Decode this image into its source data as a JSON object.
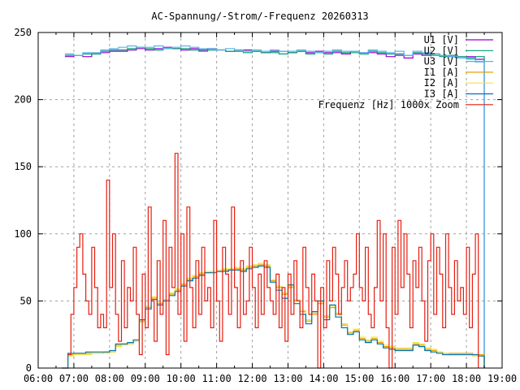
{
  "chart_data": {
    "type": "line",
    "title": "AC-Spannung/-Strom/-Frequenz 20260313",
    "xlabel": "",
    "ylabel": "",
    "xlim_hours": [
      6,
      19
    ],
    "ylim": [
      0,
      250
    ],
    "grid": true,
    "legend_position": "top-right",
    "x_tick_labels": [
      "06:00",
      "07:00",
      "08:00",
      "09:00",
      "10:00",
      "11:00",
      "12:00",
      "13:00",
      "14:00",
      "15:00",
      "16:00",
      "17:00",
      "18:00",
      "19:00"
    ],
    "y_tick_labels": [
      "0",
      "50",
      "100",
      "150",
      "200",
      "250"
    ],
    "series": [
      {
        "name": "U1 [V]",
        "color": "#9400d3",
        "start_hour": 6.75,
        "step_min": 15,
        "values": [
          232,
          233,
          232,
          234,
          235,
          236,
          236,
          237,
          238,
          237,
          238,
          239,
          238,
          237,
          238,
          237,
          238,
          237,
          236,
          237,
          237,
          236,
          235,
          236,
          236,
          235,
          236,
          235,
          236,
          235,
          235,
          234,
          236,
          235,
          235,
          234,
          232,
          233,
          231,
          234,
          233,
          234,
          233,
          232,
          231,
          232,
          230,
          0
        ]
      },
      {
        "name": "U2 [V]",
        "color": "#009e73",
        "start_hour": 6.75,
        "step_min": 15,
        "values": [
          233,
          233,
          234,
          234,
          236,
          237,
          237,
          238,
          239,
          238,
          237,
          238,
          238,
          238,
          237,
          236,
          237,
          237,
          236,
          236,
          235,
          236,
          235,
          235,
          234,
          235,
          236,
          234,
          235,
          234,
          236,
          235,
          235,
          234,
          236,
          235,
          234,
          234,
          233,
          235,
          234,
          233,
          232,
          233,
          232,
          231,
          232,
          0
        ]
      },
      {
        "name": "U3 [V]",
        "color": "#56b4e9",
        "start_hour": 6.75,
        "step_min": 15,
        "values": [
          234,
          233,
          235,
          235,
          237,
          238,
          239,
          240,
          239,
          239,
          240,
          238,
          239,
          240,
          239,
          238,
          238,
          237,
          238,
          237,
          236,
          237,
          236,
          237,
          236,
          236,
          237,
          236,
          235,
          236,
          237,
          236,
          236,
          235,
          237,
          236,
          235,
          236,
          233,
          236,
          235,
          234,
          233,
          232,
          231,
          230,
          228,
          0
        ]
      },
      {
        "name": "I1 [A]",
        "color": "#e69f00",
        "start_hour": 6.6667,
        "step_min": 10,
        "values": [
          0,
          10,
          11,
          11,
          11,
          11,
          11,
          12,
          12,
          17,
          18,
          18,
          20,
          35,
          45,
          52,
          48,
          50,
          55,
          58,
          62,
          66,
          68,
          70,
          71,
          72,
          72,
          73,
          73,
          74,
          73,
          75,
          76,
          77,
          76,
          65,
          60,
          55,
          60,
          50,
          42,
          35,
          40,
          48,
          38,
          45,
          40,
          32,
          26,
          28,
          22,
          20,
          22,
          19,
          16,
          15,
          14,
          14,
          14,
          18,
          17,
          14,
          13,
          12,
          11,
          11,
          11,
          11,
          11,
          10,
          10,
          0
        ]
      },
      {
        "name": "I2 [A]",
        "color": "#f0e442",
        "start_hour": 6.6667,
        "step_min": 10,
        "values": [
          0,
          9,
          10,
          10,
          10,
          11,
          11,
          11,
          12,
          16,
          17,
          18,
          20,
          34,
          46,
          53,
          49,
          51,
          56,
          59,
          63,
          67,
          69,
          71,
          72,
          72,
          73,
          74,
          74,
          75,
          74,
          76,
          77,
          78,
          77,
          66,
          61,
          56,
          61,
          51,
          43,
          36,
          41,
          49,
          39,
          46,
          41,
          33,
          27,
          29,
          23,
          21,
          23,
          20,
          17,
          16,
          15,
          15,
          15,
          19,
          18,
          15,
          14,
          12,
          11,
          10,
          10,
          10,
          10,
          9,
          9,
          0
        ]
      },
      {
        "name": "I3 [A]",
        "color": "#0072b2",
        "start_hour": 6.6667,
        "step_min": 10,
        "values": [
          0,
          11,
          11,
          11,
          12,
          12,
          12,
          12,
          13,
          18,
          18,
          19,
          21,
          36,
          44,
          51,
          47,
          50,
          54,
          57,
          61,
          65,
          67,
          69,
          71,
          71,
          72,
          72,
          73,
          73,
          72,
          74,
          75,
          76,
          75,
          64,
          58,
          52,
          62,
          48,
          40,
          33,
          42,
          50,
          36,
          47,
          38,
          30,
          25,
          27,
          21,
          19,
          21,
          18,
          15,
          14,
          13,
          13,
          13,
          17,
          16,
          13,
          12,
          11,
          10,
          10,
          10,
          10,
          10,
          10,
          9,
          0
        ]
      },
      {
        "name": "Frequenz [Hz] 1000x Zoom",
        "color": "#e51e10",
        "start_hour": 6.8333,
        "step_min": 5,
        "values": [
          10,
          40,
          60,
          90,
          100,
          70,
          50,
          40,
          90,
          60,
          30,
          40,
          30,
          140,
          60,
          100,
          40,
          20,
          80,
          30,
          60,
          50,
          90,
          40,
          10,
          70,
          30,
          120,
          50,
          20,
          80,
          40,
          110,
          10,
          90,
          60,
          160,
          40,
          100,
          20,
          120,
          60,
          30,
          80,
          40,
          90,
          50,
          60,
          30,
          110,
          50,
          20,
          90,
          70,
          40,
          120,
          60,
          30,
          80,
          40,
          50,
          90,
          60,
          30,
          70,
          40,
          80,
          60,
          50,
          40,
          70,
          30,
          60,
          20,
          70,
          40,
          80,
          50,
          30,
          90,
          60,
          40,
          70,
          50,
          0,
          60,
          30,
          80,
          50,
          90,
          70,
          40,
          60,
          80,
          50,
          60,
          70,
          100,
          60,
          50,
          90,
          40,
          30,
          60,
          110,
          50,
          100,
          30,
          0,
          90,
          40,
          110,
          60,
          100,
          70,
          30,
          80,
          60,
          90,
          50,
          20,
          80,
          100,
          40,
          90,
          70,
          30,
          100,
          60,
          40,
          80,
          50,
          60,
          40,
          90,
          30,
          70,
          100,
          0
        ]
      }
    ]
  }
}
